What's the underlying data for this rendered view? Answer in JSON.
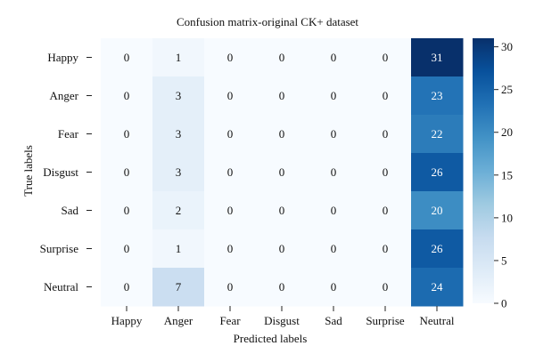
{
  "chart_data": {
    "type": "heatmap",
    "title": "Confusion matrix-original CK+ dataset",
    "xlabel": "Predicted labels",
    "ylabel": "True labels",
    "x_categories": [
      "Happy",
      "Anger",
      "Fear",
      "Disgust",
      "Sad",
      "Surprise",
      "Neutral"
    ],
    "y_categories": [
      "Happy",
      "Anger",
      "Fear",
      "Disgust",
      "Sad",
      "Surprise",
      "Neutral"
    ],
    "values": [
      [
        0,
        1,
        0,
        0,
        0,
        0,
        31
      ],
      [
        0,
        3,
        0,
        0,
        0,
        0,
        23
      ],
      [
        0,
        3,
        0,
        0,
        0,
        0,
        22
      ],
      [
        0,
        3,
        0,
        0,
        0,
        0,
        26
      ],
      [
        0,
        2,
        0,
        0,
        0,
        0,
        20
      ],
      [
        0,
        1,
        0,
        0,
        0,
        0,
        26
      ],
      [
        0,
        7,
        0,
        0,
        0,
        0,
        24
      ]
    ],
    "colorbar": {
      "min": 0,
      "max": 31,
      "ticks": [
        0,
        5,
        10,
        15,
        20,
        25,
        30
      ]
    },
    "colormap": "Blues"
  }
}
